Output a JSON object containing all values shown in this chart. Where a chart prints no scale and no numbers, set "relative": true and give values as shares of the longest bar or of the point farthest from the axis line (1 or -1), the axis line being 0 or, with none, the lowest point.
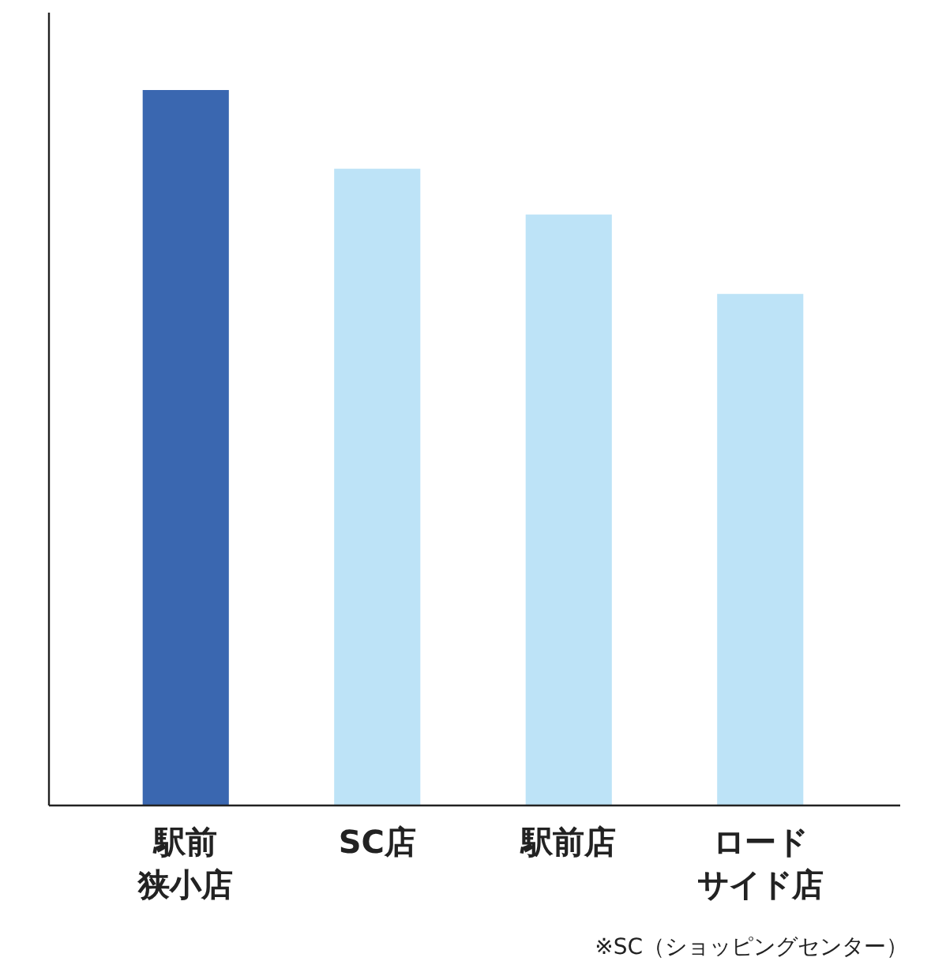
{
  "chart_data": {
    "type": "bar",
    "relative": true,
    "categories": [
      "駅前狭小店",
      "SC店",
      "駅前店",
      "ロードサイド店"
    ],
    "values": [
      1,
      0.89,
      0.826,
      0.715
    ],
    "colors": [
      "#3a67b0",
      "#bde3f7",
      "#bde3f7",
      "#bde3f7"
    ],
    "annotations": [
      "※SC（ショッピングセンター）"
    ]
  }
}
